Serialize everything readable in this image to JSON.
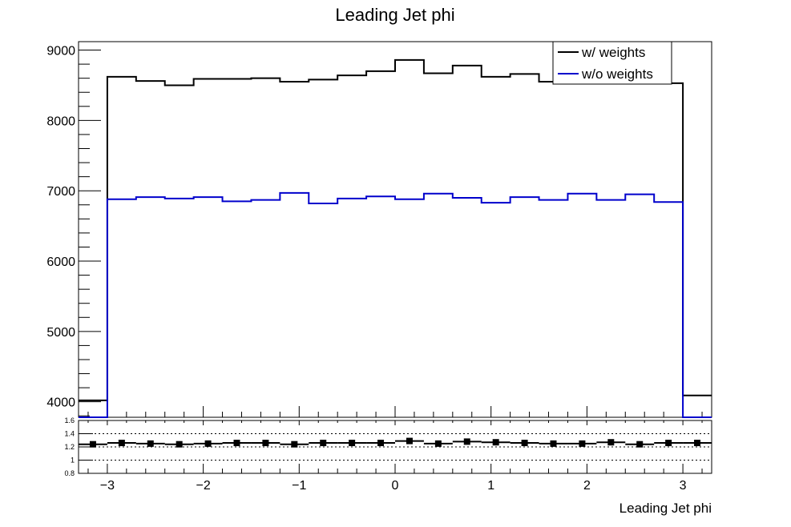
{
  "chart_data": [
    {
      "type": "histogram",
      "title": "Leading Jet phi",
      "xlabel": "",
      "ylabel": "",
      "xlim": [
        -3.3,
        3.3
      ],
      "ylim": [
        3780,
        9120
      ],
      "y_ticks": [
        4000,
        5000,
        6000,
        7000,
        8000,
        9000
      ],
      "grid": false,
      "legend_position": "top-right",
      "bin_edges": [
        -3.3,
        -3.0,
        -2.7,
        -2.4,
        -2.1,
        -1.8,
        -1.5,
        -1.2,
        -0.9,
        -0.6,
        -0.3,
        0.0,
        0.3,
        0.6,
        0.9,
        1.2,
        1.5,
        1.8,
        2.1,
        2.4,
        2.7,
        3.0,
        3.3
      ],
      "series": [
        {
          "name": "w/ weights",
          "color": "#000000",
          "values": [
            4020,
            8620,
            8560,
            8500,
            8590,
            8590,
            8600,
            8550,
            8580,
            8640,
            8700,
            8860,
            8670,
            8780,
            8620,
            8660,
            8550,
            8570,
            8560,
            8600,
            8530,
            4090
          ]
        },
        {
          "name": "w/o weights",
          "color": "#0000cc",
          "values": [
            3780,
            6880,
            6910,
            6890,
            6910,
            6850,
            6870,
            6970,
            6820,
            6890,
            6920,
            6880,
            6960,
            6900,
            6830,
            6910,
            6870,
            6960,
            6870,
            6950,
            6840,
            3780
          ]
        }
      ]
    },
    {
      "type": "scatter",
      "title": "",
      "xlabel": "Leading Jet phi",
      "ylabel": "",
      "xlim": [
        -3.3,
        3.3
      ],
      "ylim": [
        0.8,
        1.6
      ],
      "y_ticks": [
        0.8,
        1,
        1.2,
        1.4,
        1.6
      ],
      "x_ticks": [
        -3,
        -2,
        -1,
        0,
        1,
        2,
        3
      ],
      "dashed_gridlines": [
        1,
        1.2,
        1.4
      ],
      "series": [
        {
          "name": "",
          "color": "#000000",
          "x": [
            -3.15,
            -2.85,
            -2.55,
            -2.25,
            -1.95,
            -1.65,
            -1.35,
            -1.05,
            -0.75,
            -0.45,
            -0.15,
            0.15,
            0.45,
            0.75,
            1.05,
            1.35,
            1.65,
            1.95,
            2.25,
            2.55,
            2.85,
            3.15
          ],
          "y": [
            1.24,
            1.26,
            1.25,
            1.24,
            1.25,
            1.26,
            1.26,
            1.24,
            1.26,
            1.26,
            1.26,
            1.29,
            1.25,
            1.28,
            1.27,
            1.26,
            1.25,
            1.25,
            1.27,
            1.24,
            1.26,
            1.26
          ]
        }
      ]
    }
  ]
}
